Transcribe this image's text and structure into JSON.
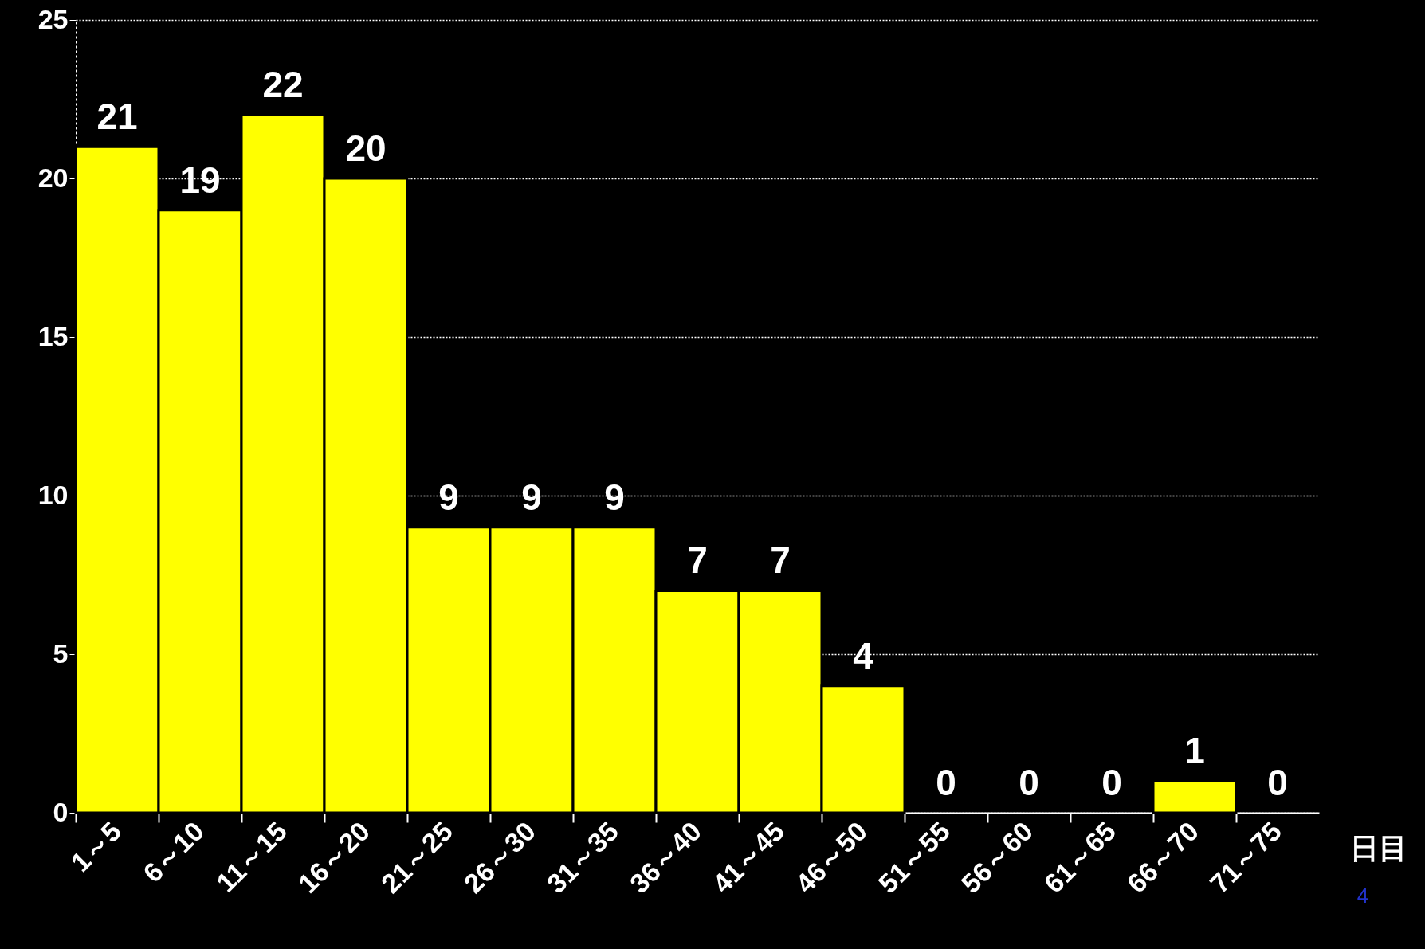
{
  "chart_data": {
    "type": "bar",
    "xlabel": "日目",
    "categories": [
      "1～5",
      "6～10",
      "11～15",
      "16～20",
      "21～25",
      "26～30",
      "31～35",
      "36～40",
      "41～45",
      "46～50",
      "51～55",
      "56～60",
      "61～65",
      "66～70",
      "71～75"
    ],
    "values": [
      21,
      19,
      22,
      20,
      9,
      9,
      9,
      7,
      7,
      4,
      0,
      0,
      0,
      1,
      0
    ],
    "color": "#ffff00",
    "ylim": [
      0,
      25
    ],
    "yticks": [
      0,
      5,
      10,
      15,
      20,
      25
    ],
    "grid": "y",
    "data_labels": true,
    "annotations": [
      "4"
    ]
  }
}
